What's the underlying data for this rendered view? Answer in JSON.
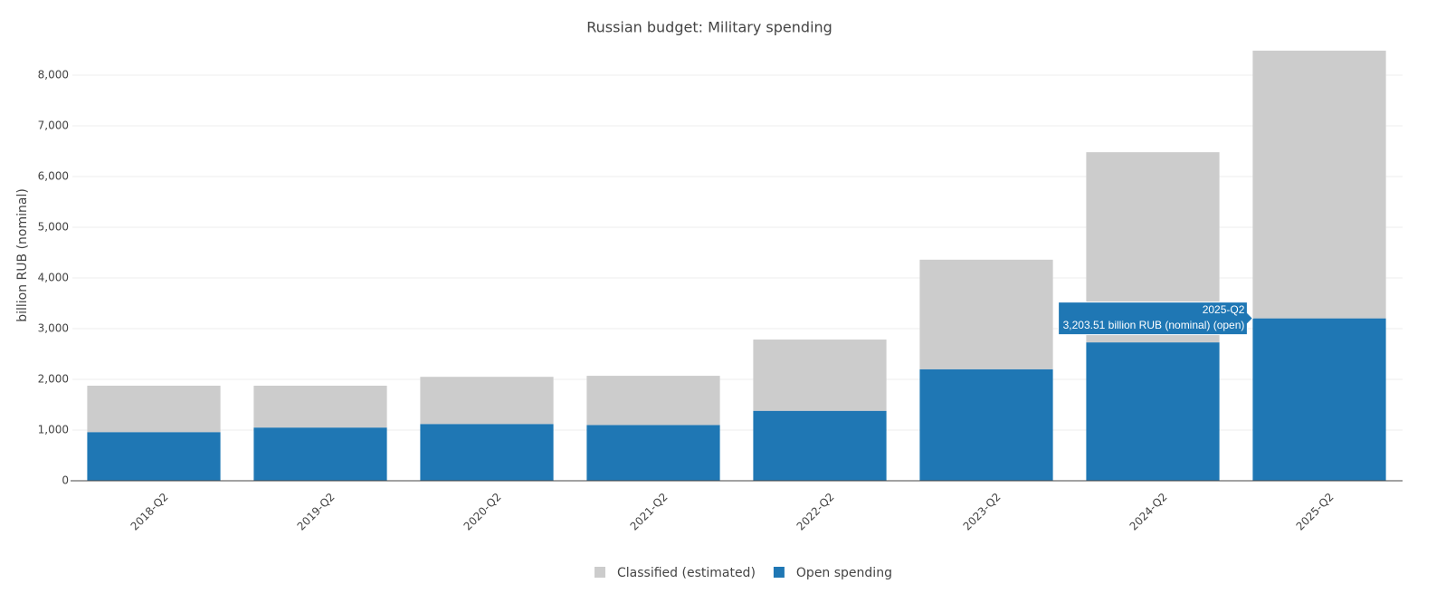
{
  "chart_data": {
    "type": "stacked_bar",
    "title": "Russian budget: Military spending",
    "y_label": "billion RUB (nominal)",
    "categories": [
      "2018-Q2",
      "2019-Q2",
      "2020-Q2",
      "2021-Q2",
      "2022-Q2",
      "2023-Q2",
      "2024-Q2",
      "2025-Q2"
    ],
    "series": [
      {
        "name": "Classified (estimated)",
        "color": "#cccccc",
        "values": [
          915,
          825,
          930,
          970,
          1405,
          2160,
          3750,
          5280
        ]
      },
      {
        "name": "Open spending",
        "color": "#1f77b4",
        "values": [
          960,
          1050,
          1120,
          1100,
          1380,
          2200,
          2730,
          3203.51
        ]
      }
    ],
    "ylim": [
      0,
      8500
    ],
    "yticks": [
      0,
      {
        "value": 1000,
        "label": "1,000"
      },
      {
        "value": 2000,
        "label": "2,000"
      },
      {
        "value": 3000,
        "label": "3,000"
      },
      {
        "value": 4000,
        "label": "4,000"
      },
      {
        "value": 5000,
        "label": "5,000"
      },
      {
        "value": 6000,
        "label": "6,000"
      },
      {
        "value": 7000,
        "label": "7,000"
      },
      {
        "value": 8000,
        "label": "8,000"
      }
    ],
    "grid": true,
    "legend": "bottom",
    "tooltip": {
      "category": "2025-Q2",
      "text": "3,203.51 billion RUB (nominal) (open)"
    }
  }
}
